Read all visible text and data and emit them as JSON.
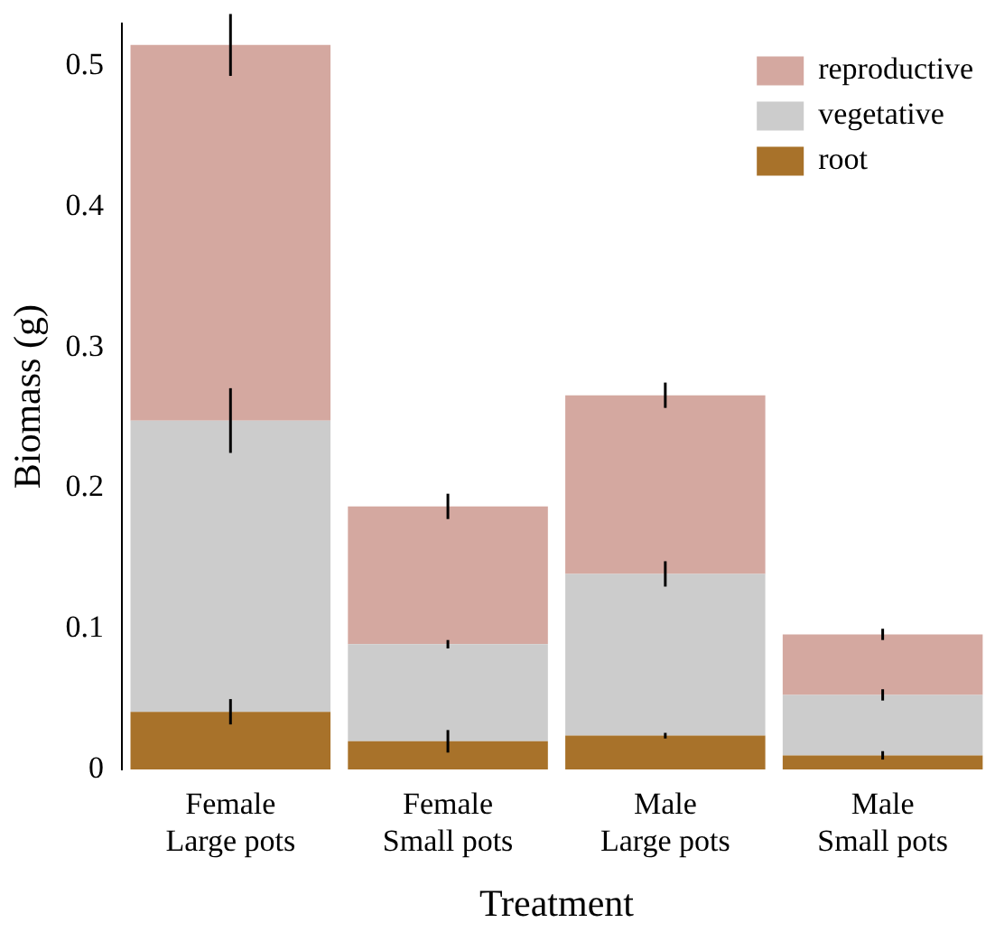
{
  "chart_data": {
    "type": "bar",
    "stacked": true,
    "xlabel": "Treatment",
    "ylabel": "Biomass (g)",
    "categories": [
      "Female Large pots",
      "Female Small pots",
      "Male Large pots",
      "Male Small pots"
    ],
    "series": [
      {
        "name": "root",
        "color": "#a8722a",
        "values": [
          0.041,
          0.02,
          0.024,
          0.01
        ],
        "errors": [
          0.009,
          0.008,
          0.002,
          0.003
        ]
      },
      {
        "name": "vegetative",
        "color": "#cccccc",
        "values": [
          0.207,
          0.069,
          0.115,
          0.043
        ],
        "errors": [
          0.023,
          0.003,
          0.009,
          0.004
        ]
      },
      {
        "name": "reproductive",
        "color": "#d4a8a0",
        "values": [
          0.267,
          0.098,
          0.127,
          0.043
        ],
        "errors": [
          0.022,
          0.009,
          0.009,
          0.004
        ]
      }
    ],
    "ylim": [
      0,
      0.53
    ],
    "yticks": [
      0,
      0.1,
      0.2,
      0.3,
      0.4,
      0.5
    ],
    "grid": false,
    "legend": "top right"
  }
}
